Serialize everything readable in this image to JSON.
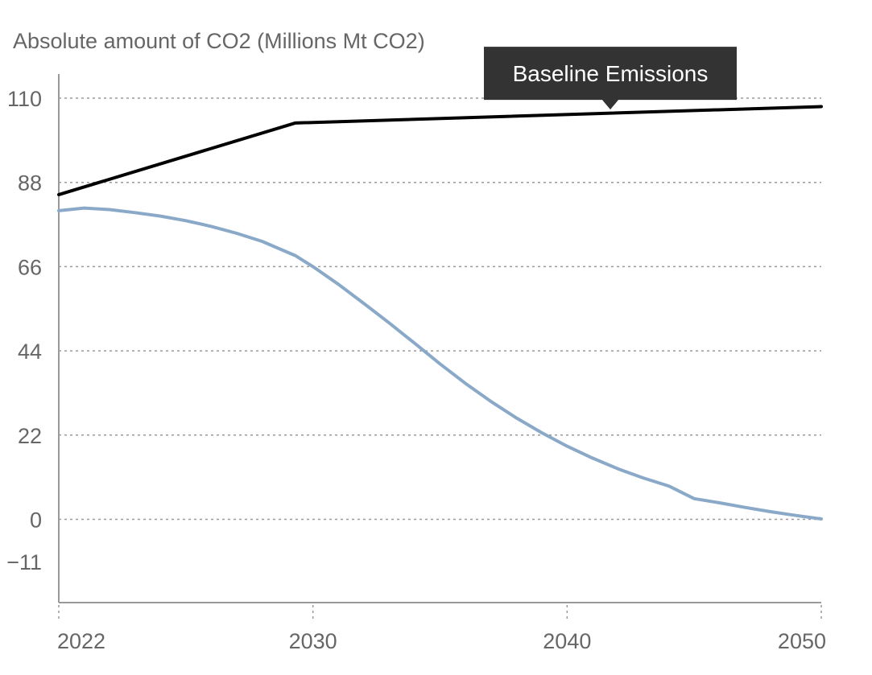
{
  "chart_data": {
    "type": "line",
    "title": "",
    "ylabel": "Absolute amount of CO2 (Millions Mt CO2)",
    "xlabel": "",
    "xlim": [
      2021,
      2051
    ],
    "ylim": [
      -11,
      110
    ],
    "y_ticks": [
      110,
      88,
      66,
      44,
      22,
      0,
      -11
    ],
    "y_tick_labels": [
      "110",
      "88",
      "66",
      "44",
      "22",
      "0",
      "−11"
    ],
    "x_ticks": [
      2021,
      2031,
      2041,
      2051
    ],
    "x_tick_labels": [
      "2022",
      "2030",
      "2040",
      "2050"
    ],
    "grid": "horizontal dotted",
    "series": [
      {
        "name": "Baseline Emissions",
        "color": "#000000",
        "x": [
          2021,
          2030.3,
          2051
        ],
        "y": [
          84.8,
          103.5,
          107.8
        ]
      },
      {
        "color": "#8aa9c8",
        "x": [
          2021,
          2022,
          2023,
          2024,
          2025,
          2026,
          2027,
          2028,
          2029,
          2030.3,
          2031,
          2032,
          2033,
          2034,
          2035,
          2036,
          2037,
          2038,
          2039,
          2040,
          2041,
          2042,
          2043,
          2044,
          2045,
          2046,
          2047,
          2048,
          2049,
          2050,
          2051
        ],
        "y": [
          80.6,
          81.3,
          80.9,
          80.1,
          79.2,
          78.0,
          76.5,
          74.7,
          72.6,
          68.9,
          66.0,
          61.4,
          56.4,
          51.3,
          46.0,
          40.6,
          35.5,
          30.8,
          26.5,
          22.6,
          19.1,
          16.0,
          13.2,
          10.8,
          8.7,
          5.4,
          4.3,
          3.1,
          2.0,
          1.0,
          0.1
        ]
      }
    ],
    "annotation": {
      "text": "Baseline Emissions",
      "x": 2042.7,
      "y": 106.6,
      "style": "dark callout box"
    }
  }
}
